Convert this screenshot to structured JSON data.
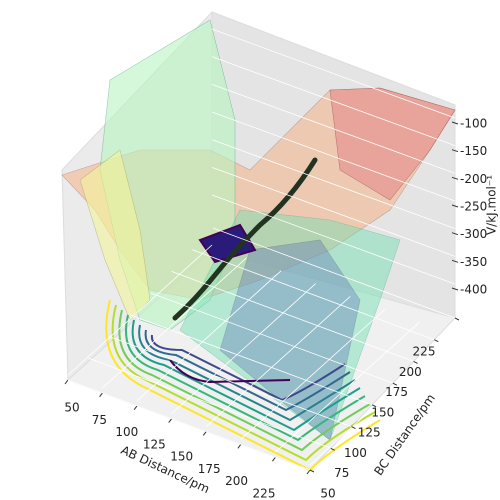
{
  "chart_data": {
    "type": "surface3d",
    "xlabel": "AB Distance/pm",
    "ylabel": "BC Distance/pm",
    "zlabel": "V/kJ.mol⁻¹",
    "xlim": [
      50,
      225
    ],
    "xticks": [
      50,
      75,
      100,
      125,
      150,
      175,
      200,
      225
    ],
    "ylim": [
      50,
      225
    ],
    "yticks": [
      50,
      75,
      100,
      125,
      150,
      175,
      200,
      225
    ],
    "zlim": [
      -100,
      -400
    ],
    "zticks": [
      -100,
      -150,
      -200,
      -250,
      -300,
      -350,
      -400
    ],
    "grid": true
  }
}
